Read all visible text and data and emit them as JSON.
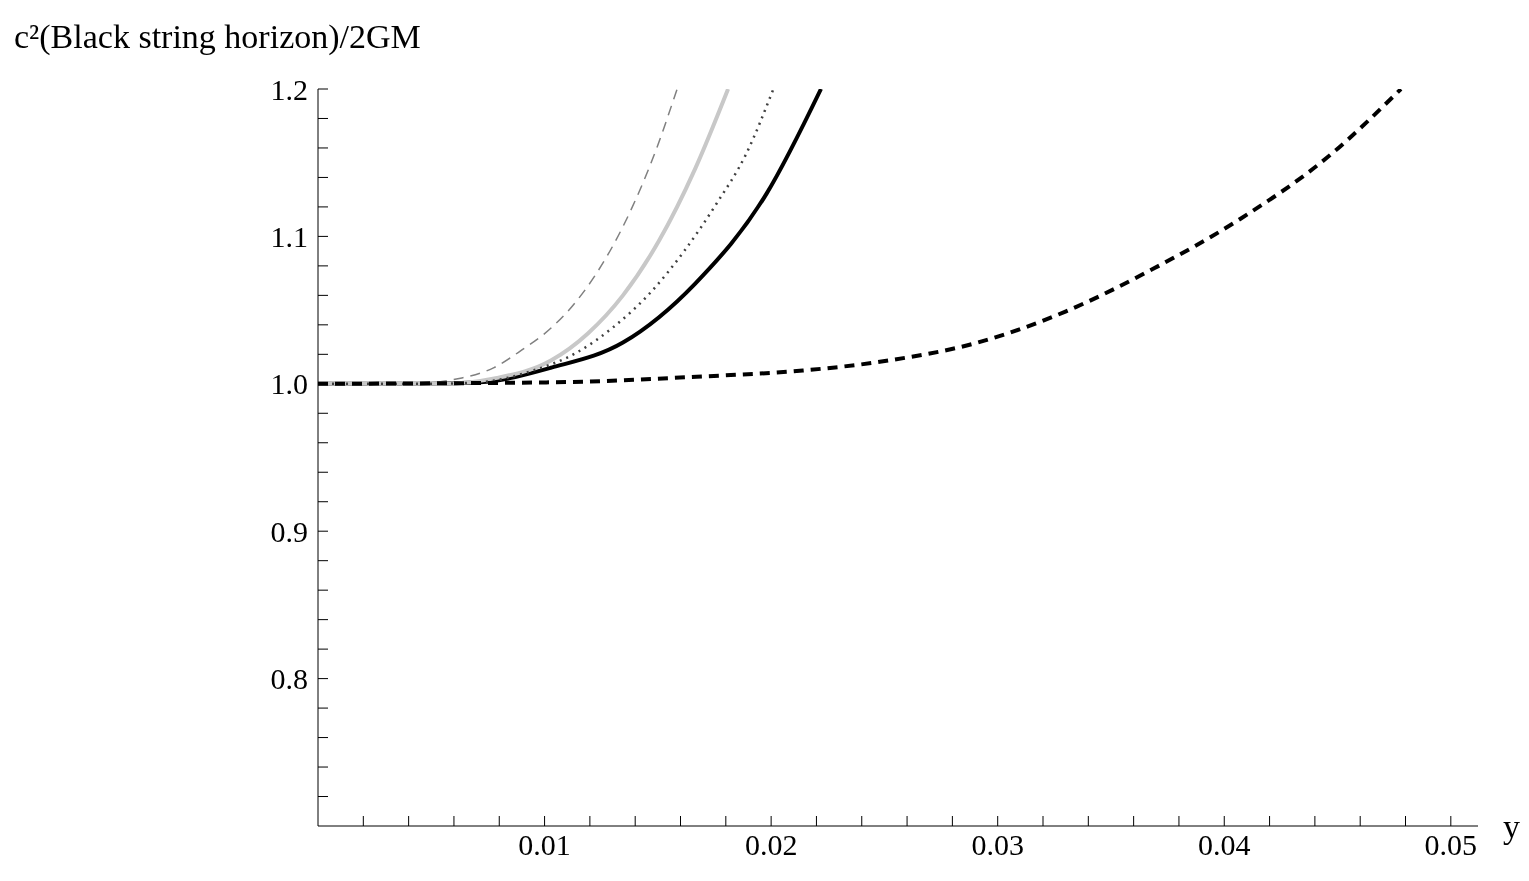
{
  "chart_data": {
    "type": "line",
    "ylabel": "c²(Black string horizon)/2GM",
    "xlabel": "y",
    "xlim": [
      0,
      0.0512
    ],
    "ylim": [
      0.7,
      1.2
    ],
    "xticks": [
      {
        "value": 0.002,
        "label": null
      },
      {
        "value": 0.004,
        "label": null
      },
      {
        "value": 0.006,
        "label": null
      },
      {
        "value": 0.008,
        "label": null
      },
      0.01,
      {
        "value": 0.012,
        "label": null
      },
      {
        "value": 0.014,
        "label": null
      },
      {
        "value": 0.016,
        "label": null
      },
      {
        "value": 0.018,
        "label": null
      },
      0.02,
      {
        "value": 0.022,
        "label": null
      },
      {
        "value": 0.024,
        "label": null
      },
      {
        "value": 0.026,
        "label": null
      },
      {
        "value": 0.028,
        "label": null
      },
      0.03,
      {
        "value": 0.032,
        "label": null
      },
      {
        "value": 0.034,
        "label": null
      },
      {
        "value": 0.036,
        "label": null
      },
      {
        "value": 0.038,
        "label": null
      },
      0.04,
      {
        "value": 0.042,
        "label": null
      },
      {
        "value": 0.044,
        "label": null
      },
      {
        "value": 0.046,
        "label": null
      },
      {
        "value": 0.048,
        "label": null
      },
      0.05
    ],
    "yticks": [
      {
        "value": 0.72,
        "label": null
      },
      {
        "value": 0.74,
        "label": null
      },
      {
        "value": 0.76,
        "label": null
      },
      {
        "value": 0.78,
        "label": null
      },
      0.8,
      {
        "value": 0.82,
        "label": null
      },
      {
        "value": 0.84,
        "label": null
      },
      {
        "value": 0.86,
        "label": null
      },
      {
        "value": 0.88,
        "label": null
      },
      0.9,
      {
        "value": 0.92,
        "label": null
      },
      {
        "value": 0.94,
        "label": null
      },
      {
        "value": 0.96,
        "label": null
      },
      {
        "value": 0.98,
        "label": null
      },
      {
        "value": 1.0,
        "label": "1.0"
      },
      {
        "value": 1.02,
        "label": null
      },
      {
        "value": 1.04,
        "label": null
      },
      {
        "value": 1.06,
        "label": null
      },
      {
        "value": 1.08,
        "label": null
      },
      1.1,
      {
        "value": 1.12,
        "label": null
      },
      {
        "value": 1.14,
        "label": null
      },
      {
        "value": 1.16,
        "label": null
      },
      {
        "value": 1.18,
        "label": null
      },
      1.2
    ],
    "grid": false,
    "legend": false,
    "marker": "none",
    "series": [
      {
        "color": "#000000",
        "line_style": "solid",
        "x": [
          0,
          0.005,
          0.00715,
          0.0103,
          0.01346,
          0.01665,
          0.0198,
          0.0222
        ],
        "values": [
          1,
          1,
          1.001,
          1.011,
          1.028,
          1.068,
          1.129,
          1.2
        ]
      },
      {
        "color": "#c8c8c8",
        "line_style": "solid",
        "x": [
          0,
          0.0054,
          0.0079,
          0.0103,
          0.0119,
          0.01346,
          0.01505,
          0.01665,
          0.0181
        ],
        "values": [
          1,
          1,
          1.004,
          1.016,
          1.034,
          1.06,
          1.097,
          1.146,
          1.2
        ]
      },
      {
        "color": "#808080",
        "line_style": "dashed",
        "x": [
          0,
          0.004,
          0.00635,
          0.00777,
          0.009,
          0.0103,
          0.01124,
          0.01221,
          0.01363,
          0.01483,
          0.01585
        ],
        "values": [
          1,
          1,
          1.004,
          1.011,
          1.023,
          1.038,
          1.053,
          1.073,
          1.112,
          1.155,
          1.2
        ]
      },
      {
        "color": "#404040",
        "line_style": "dotted",
        "x": [
          0,
          0.005,
          0.0071,
          0.0095,
          0.0114,
          0.013,
          0.01474,
          0.01616,
          0.01758,
          0.0189,
          0.0201
        ],
        "values": [
          1,
          1,
          1.001,
          1.009,
          1.021,
          1.038,
          1.063,
          1.09,
          1.122,
          1.156,
          1.2
        ]
      },
      {
        "color": "#000000",
        "line_style": "dashed",
        "x": [
          0,
          0.0103,
          0.017,
          0.0214,
          0.02527,
          0.02913,
          0.03299,
          0.03686,
          0.04072,
          0.04458,
          0.0478
        ],
        "values": [
          1,
          1.001,
          1.005,
          1.009,
          1.016,
          1.028,
          1.049,
          1.078,
          1.112,
          1.154,
          1.2
        ]
      }
    ]
  }
}
